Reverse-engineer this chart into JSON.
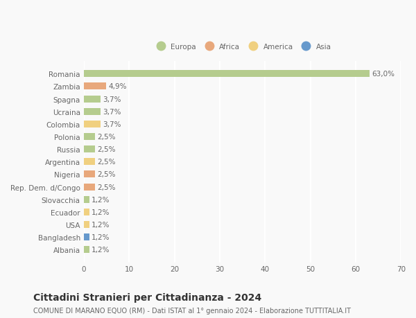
{
  "countries": [
    "Romania",
    "Zambia",
    "Spagna",
    "Ucraina",
    "Colombia",
    "Polonia",
    "Russia",
    "Argentina",
    "Nigeria",
    "Rep. Dem. d/Congo",
    "Slovacchia",
    "Ecuador",
    "USA",
    "Bangladesh",
    "Albania"
  ],
  "values": [
    63.0,
    4.9,
    3.7,
    3.7,
    3.7,
    2.5,
    2.5,
    2.5,
    2.5,
    2.5,
    1.2,
    1.2,
    1.2,
    1.2,
    1.2
  ],
  "labels": [
    "63,0%",
    "4,9%",
    "3,7%",
    "3,7%",
    "3,7%",
    "2,5%",
    "2,5%",
    "2,5%",
    "2,5%",
    "2,5%",
    "1,2%",
    "1,2%",
    "1,2%",
    "1,2%",
    "1,2%"
  ],
  "continents": [
    "Europa",
    "Africa",
    "Europa",
    "Europa",
    "America",
    "Europa",
    "Europa",
    "America",
    "Africa",
    "Africa",
    "Europa",
    "America",
    "America",
    "Asia",
    "Europa"
  ],
  "colors": {
    "Europa": "#b5cc8e",
    "Africa": "#e8a87c",
    "America": "#f0d080",
    "Asia": "#6699cc"
  },
  "xlim": [
    0,
    70
  ],
  "xticks": [
    0,
    10,
    20,
    30,
    40,
    50,
    60,
    70
  ],
  "title": "Cittadini Stranieri per Cittadinanza - 2024",
  "subtitle": "COMUNE DI MARANO EQUO (RM) - Dati ISTAT al 1° gennaio 2024 - Elaborazione TUTTITALIA.IT",
  "background_color": "#f9f9f9",
  "grid_color": "#ffffff",
  "bar_height": 0.55,
  "label_fontsize": 7.5,
  "tick_fontsize": 7.5,
  "title_fontsize": 10,
  "subtitle_fontsize": 7.0,
  "legend_entries": [
    "Europa",
    "Africa",
    "America",
    "Asia"
  ]
}
